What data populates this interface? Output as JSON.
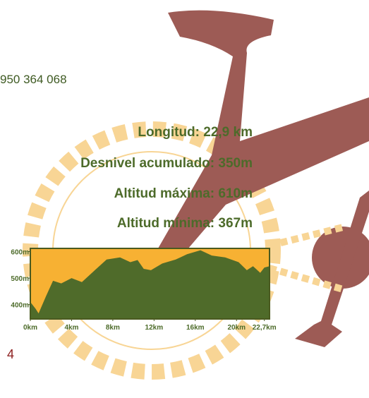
{
  "phone": "950 364 068",
  "stats": [
    "Longitud: 22,9 km",
    "Desnivel acumulado: 350m",
    "Altitud máxima: 610m",
    "Altitud mínima: 367m"
  ],
  "page_number": "4",
  "chart_data": {
    "type": "area",
    "x": [
      0,
      0.5,
      0.8,
      1.5,
      2.2,
      3,
      4,
      5,
      5.7,
      6.4,
      7.4,
      8.7,
      9.7,
      10.4,
      11,
      11.7,
      12.8,
      14.1,
      15.2,
      16.5,
      17.6,
      18.9,
      20.2,
      21,
      21.6,
      22.3,
      22.7,
      23.2
    ],
    "values": [
      410,
      385,
      367,
      430,
      490,
      480,
      500,
      485,
      510,
      535,
      570,
      578,
      560,
      568,
      535,
      530,
      555,
      570,
      590,
      605,
      585,
      578,
      560,
      530,
      545,
      520,
      540,
      545
    ],
    "color": "#4f6b2a",
    "background": "#f7b133",
    "xlim": [
      0,
      23.2
    ],
    "ylim": [
      346,
      612
    ],
    "xticks": [
      {
        "value": 0,
        "label": "0km"
      },
      {
        "value": 4,
        "label": "4km"
      },
      {
        "value": 8,
        "label": "8km"
      },
      {
        "value": 12,
        "label": "12km"
      },
      {
        "value": 16,
        "label": "16km"
      },
      {
        "value": 20,
        "label": "20km"
      },
      {
        "value": 22.7,
        "label": "22,7km"
      }
    ],
    "yticks": [
      {
        "value": 400,
        "label": "400m"
      },
      {
        "value": 500,
        "label": "500m"
      },
      {
        "value": 600,
        "label": "600m"
      }
    ]
  }
}
